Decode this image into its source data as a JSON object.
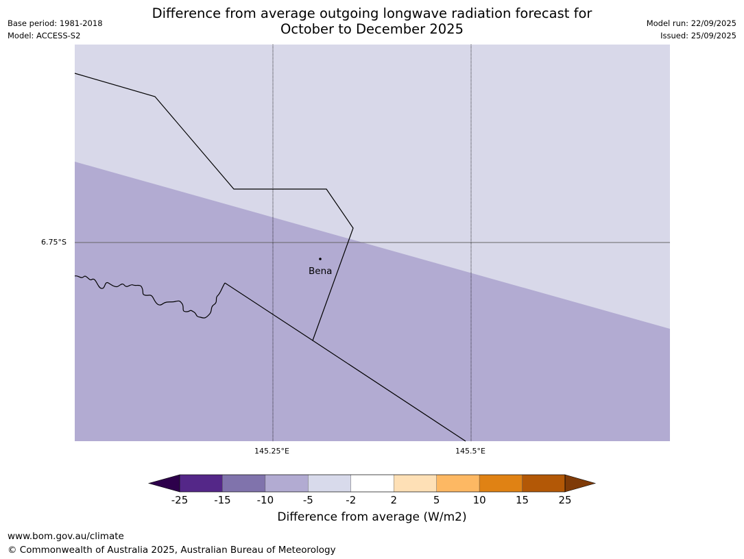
{
  "title": {
    "line1": "Difference from average outgoing longwave radiation forecast for",
    "line2": "October to December 2025"
  },
  "meta_left": {
    "base_period": "Base period: 1981-2018",
    "model": "Model: ACCESS-S2"
  },
  "meta_right": {
    "model_run": "Model run: 22/09/2025",
    "issued": "Issued: 25/09/2025"
  },
  "map": {
    "lat_label": "6.75°S",
    "lon_labels": [
      "145.25°E",
      "145.5°E"
    ],
    "place_label": "Bena",
    "colors": {
      "category_minus5_to_minus2": "#d8d8e9",
      "category_minus10_to_minus5": "#b2abd2",
      "gridline": "#000000",
      "border": "#000000"
    }
  },
  "colorbar": {
    "label": "Difference from average (W/m2)",
    "ticks": [
      "-25",
      "-15",
      "-10",
      "-5",
      "-2",
      "2",
      "5",
      "10",
      "15",
      "25"
    ],
    "colors": [
      "#2d004b",
      "#542788",
      "#8073ac",
      "#b2abd2",
      "#d8daeb",
      "#ffffff",
      "#fee0b6",
      "#fdb863",
      "#e08214",
      "#b35806",
      "#7f3b08"
    ]
  },
  "footer": {
    "url": "www.bom.gov.au/climate",
    "copyright": "© Commonwealth of Australia 2025, Australian Bureau of Meteorology"
  }
}
